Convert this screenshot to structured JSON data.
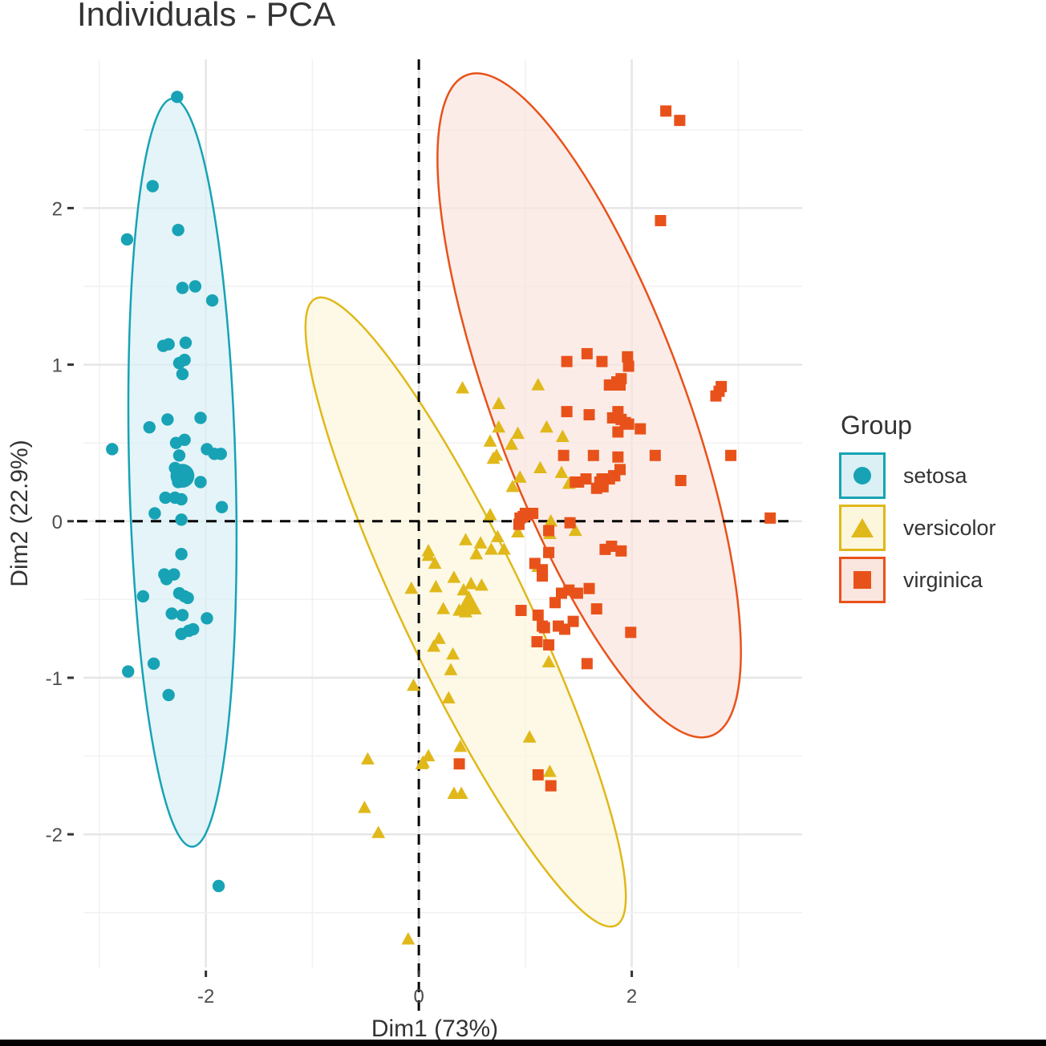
{
  "title": "Individuals - PCA",
  "chart_data": {
    "type": "scatter",
    "title": "Individuals - PCA",
    "xlabel": "Dim1 (73%)",
    "ylabel": "Dim2 (22.9%)",
    "xlim": [
      -3.15,
      3.6
    ],
    "ylim": [
      -2.85,
      2.95
    ],
    "x_ticks": [
      -2,
      0,
      2
    ],
    "y_ticks": [
      -2,
      -1,
      0,
      1,
      2
    ],
    "x_tick_labels": [
      "-2",
      "0",
      "2"
    ],
    "y_tick_labels": [
      "-2",
      "-1",
      "0",
      "1",
      "2"
    ],
    "grid": true,
    "reference_lines": {
      "x": 0,
      "y": 0,
      "style": "dashed"
    },
    "legend_title": "Group",
    "legend_position": "right",
    "series": [
      {
        "name": "setosa",
        "marker": "circle",
        "color": "#17a3b5",
        "ellipse": {
          "center": [
            -2.22,
            0.31
          ],
          "radii": [
            0.5,
            2.39
          ],
          "angle_deg": -1.5,
          "fill": "#daf0f5"
        },
        "centroid": [
          -2.22,
          0.29
        ],
        "points": [
          [
            -2.27,
            2.71
          ],
          [
            -2.5,
            2.14
          ],
          [
            -2.26,
            1.86
          ],
          [
            -2.74,
            1.8
          ],
          [
            -2.22,
            1.49
          ],
          [
            -2.1,
            1.5
          ],
          [
            -1.94,
            1.41
          ],
          [
            -2.35,
            1.13
          ],
          [
            -2.4,
            1.12
          ],
          [
            -2.19,
            1.14
          ],
          [
            -2.2,
            1.03
          ],
          [
            -2.25,
            1.01
          ],
          [
            -2.22,
            0.94
          ],
          [
            -2.36,
            0.65
          ],
          [
            -2.53,
            0.6
          ],
          [
            -2.05,
            0.66
          ],
          [
            -2.88,
            0.46
          ],
          [
            -2.28,
            0.5
          ],
          [
            -2.2,
            0.52
          ],
          [
            -2.25,
            0.42
          ],
          [
            -1.99,
            0.46
          ],
          [
            -1.92,
            0.43
          ],
          [
            -1.86,
            0.43
          ],
          [
            -2.29,
            0.34
          ],
          [
            -2.21,
            0.32
          ],
          [
            -2.25,
            0.28
          ],
          [
            -2.26,
            0.25
          ],
          [
            -2.23,
            0.28
          ],
          [
            -2.05,
            0.25
          ],
          [
            -2.38,
            0.15
          ],
          [
            -2.29,
            0.15
          ],
          [
            -2.23,
            0.14
          ],
          [
            -2.48,
            0.05
          ],
          [
            -1.85,
            0.09
          ],
          [
            -2.23,
            0.01
          ],
          [
            -2.23,
            -0.21
          ],
          [
            -2.3,
            -0.34
          ],
          [
            -2.37,
            -0.37
          ],
          [
            -2.39,
            -0.34
          ],
          [
            -2.25,
            -0.46
          ],
          [
            -2.2,
            -0.48
          ],
          [
            -2.59,
            -0.48
          ],
          [
            -2.17,
            -0.49
          ],
          [
            -2.32,
            -0.59
          ],
          [
            -2.22,
            -0.6
          ],
          [
            -1.99,
            -0.62
          ],
          [
            -2.12,
            -0.69
          ],
          [
            -2.16,
            -0.7
          ],
          [
            -2.23,
            -0.72
          ],
          [
            -2.73,
            -0.96
          ],
          [
            -2.49,
            -0.91
          ],
          [
            -2.35,
            -1.11
          ],
          [
            -1.88,
            -2.33
          ]
        ]
      },
      {
        "name": "versicolor",
        "marker": "triangle",
        "color": "#e0b81a",
        "ellipse": {
          "center": [
            0.44,
            -0.58
          ],
          "radii": [
            0.58,
            2.22
          ],
          "angle_deg": -25.6,
          "fill": "#fcf6dc"
        },
        "centroid": [
          0.47,
          -0.53
        ],
        "points": [
          [
            0.41,
            0.85
          ],
          [
            1.12,
            0.87
          ],
          [
            0.75,
            0.75
          ],
          [
            0.75,
            0.6
          ],
          [
            0.93,
            0.56
          ],
          [
            1.2,
            0.6
          ],
          [
            0.67,
            0.51
          ],
          [
            0.87,
            0.49
          ],
          [
            0.73,
            0.42
          ],
          [
            1.35,
            0.54
          ],
          [
            0.7,
            0.4
          ],
          [
            1.14,
            0.34
          ],
          [
            0.95,
            0.28
          ],
          [
            1.34,
            0.31
          ],
          [
            1.41,
            0.24
          ],
          [
            0.88,
            0.22
          ],
          [
            0.67,
            0.04
          ],
          [
            1.24,
            0.0
          ],
          [
            0.74,
            -0.1
          ],
          [
            0.58,
            -0.14
          ],
          [
            0.44,
            -0.12
          ],
          [
            1.23,
            -0.08
          ],
          [
            1.47,
            -0.06
          ],
          [
            0.93,
            -0.07
          ],
          [
            0.68,
            -0.18
          ],
          [
            0.8,
            -0.18
          ],
          [
            0.54,
            -0.21
          ],
          [
            0.09,
            -0.19
          ],
          [
            0.09,
            -0.22
          ],
          [
            0.15,
            -0.27
          ],
          [
            1.12,
            -0.29
          ],
          [
            0.33,
            -0.36
          ],
          [
            0.49,
            -0.4
          ],
          [
            -0.07,
            -0.43
          ],
          [
            0.16,
            -0.42
          ],
          [
            0.42,
            -0.44
          ],
          [
            0.59,
            -0.41
          ],
          [
            0.23,
            -0.56
          ],
          [
            0.5,
            -0.56
          ],
          [
            0.38,
            -0.57
          ],
          [
            0.44,
            -0.58
          ],
          [
            0.19,
            -0.75
          ],
          [
            0.14,
            -0.8
          ],
          [
            0.32,
            -0.85
          ],
          [
            1.22,
            -0.9
          ],
          [
            0.3,
            -0.95
          ],
          [
            0.28,
            -1.13
          ],
          [
            -0.05,
            -1.05
          ],
          [
            0.39,
            -1.44
          ],
          [
            1.04,
            -1.38
          ],
          [
            0.09,
            -1.5
          ],
          [
            0.03,
            -1.55
          ],
          [
            -0.48,
            -1.52
          ],
          [
            0.04,
            -1.54
          ],
          [
            1.23,
            -1.6
          ],
          [
            0.33,
            -1.74
          ],
          [
            0.4,
            -1.74
          ],
          [
            -0.51,
            -1.83
          ],
          [
            -0.38,
            -1.99
          ],
          [
            -0.1,
            -2.67
          ]
        ]
      },
      {
        "name": "virginica",
        "marker": "square",
        "color": "#e8521a",
        "ellipse": {
          "center": [
            1.6,
            0.74
          ],
          "radii": [
            0.9,
            2.25
          ],
          "angle_deg": -20.3,
          "fill": "#fbe5df"
        },
        "points": [
          [
            2.32,
            2.62
          ],
          [
            2.45,
            2.56
          ],
          [
            2.27,
            1.92
          ],
          [
            1.96,
            1.05
          ],
          [
            1.58,
            1.07
          ],
          [
            1.72,
            1.02
          ],
          [
            1.39,
            1.02
          ],
          [
            1.97,
            0.99
          ],
          [
            1.9,
            0.91
          ],
          [
            1.89,
            0.87
          ],
          [
            1.86,
            0.89
          ],
          [
            1.79,
            0.87
          ],
          [
            2.84,
            0.86
          ],
          [
            2.82,
            0.83
          ],
          [
            2.79,
            0.8
          ],
          [
            1.6,
            0.68
          ],
          [
            1.39,
            0.7
          ],
          [
            1.87,
            0.7
          ],
          [
            1.9,
            0.65
          ],
          [
            1.94,
            0.63
          ],
          [
            1.82,
            0.66
          ],
          [
            1.97,
            0.62
          ],
          [
            2.08,
            0.59
          ],
          [
            1.87,
            0.57
          ],
          [
            2.22,
            0.42
          ],
          [
            2.93,
            0.42
          ],
          [
            1.64,
            0.42
          ],
          [
            1.87,
            0.41
          ],
          [
            1.36,
            0.42
          ],
          [
            1.89,
            0.33
          ],
          [
            1.84,
            0.29
          ],
          [
            1.57,
            0.27
          ],
          [
            1.47,
            0.25
          ],
          [
            1.5,
            0.25
          ],
          [
            1.73,
            0.26
          ],
          [
            1.7,
            0.25
          ],
          [
            1.72,
            0.27
          ],
          [
            1.79,
            0.27
          ],
          [
            2.46,
            0.26
          ],
          [
            1.83,
            0.29
          ],
          [
            1.67,
            0.21
          ],
          [
            1.73,
            0.22
          ],
          [
            0.98,
            0.03
          ],
          [
            0.95,
            0.02
          ],
          [
            1.0,
            0.05
          ],
          [
            1.02,
            0.04
          ],
          [
            1.07,
            0.05
          ],
          [
            1.42,
            -0.01
          ],
          [
            3.3,
            0.02
          ],
          [
            1.22,
            -0.06
          ],
          [
            0.94,
            -0.02
          ],
          [
            1.81,
            -0.16
          ],
          [
            1.9,
            -0.19
          ],
          [
            1.75,
            -0.18
          ],
          [
            1.22,
            -0.2
          ],
          [
            1.09,
            -0.27
          ],
          [
            1.16,
            -0.31
          ],
          [
            1.16,
            -0.35
          ],
          [
            1.6,
            -0.43
          ],
          [
            1.49,
            -0.46
          ],
          [
            1.34,
            -0.46
          ],
          [
            1.41,
            -0.44
          ],
          [
            1.67,
            -0.56
          ],
          [
            0.96,
            -0.57
          ],
          [
            1.28,
            -0.52
          ],
          [
            1.12,
            -0.6
          ],
          [
            1.16,
            -0.67
          ],
          [
            1.31,
            -0.67
          ],
          [
            1.45,
            -0.64
          ],
          [
            1.18,
            -0.68
          ],
          [
            1.37,
            -0.69
          ],
          [
            1.11,
            -0.77
          ],
          [
            1.22,
            -0.79
          ],
          [
            1.99,
            -0.71
          ],
          [
            1.58,
            -0.91
          ],
          [
            0.38,
            -1.55
          ],
          [
            1.12,
            -1.62
          ],
          [
            1.24,
            -1.69
          ]
        ]
      }
    ]
  }
}
